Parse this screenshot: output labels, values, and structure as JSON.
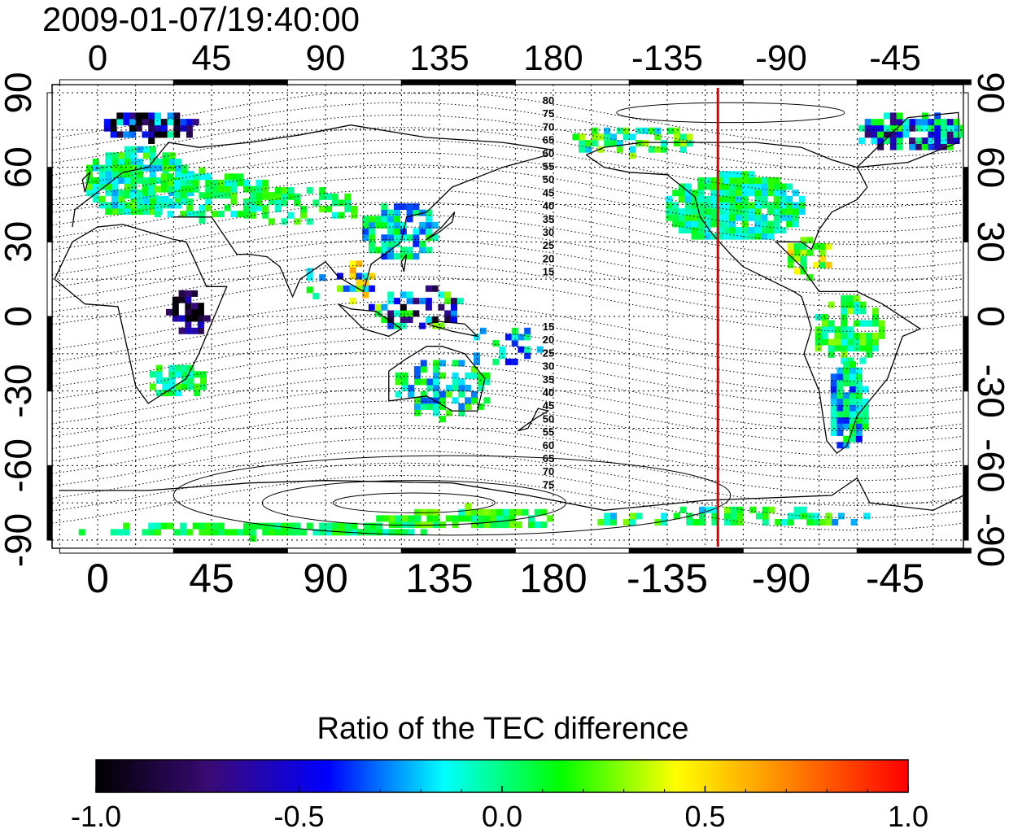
{
  "header": {
    "timestamp": "2009-01-07/19:40:00"
  },
  "map": {
    "lon_ticks": [
      "0",
      "45",
      "90",
      "135",
      "180",
      "-135",
      "-90",
      "-45"
    ],
    "lon_values": [
      0,
      45,
      90,
      135,
      180,
      225,
      270,
      315
    ],
    "lon_range": [
      -18,
      342
    ],
    "lat_ticks": [
      "90",
      "60",
      "30",
      "0",
      "-30",
      "-60",
      "-90"
    ],
    "lat_values": [
      90,
      60,
      30,
      0,
      -30,
      -60,
      -90
    ],
    "grid": true,
    "grid_lon_step": 15,
    "grid_lat_step": 15,
    "marker_line_lon": -115,
    "marker_line_color": "#e00000",
    "contour_labels_north": [
      "80",
      "75",
      "70",
      "65",
      "60",
      "55",
      "50",
      "45",
      "40",
      "35",
      "30",
      "25",
      "20",
      "15"
    ],
    "contour_labels_south": [
      "15",
      "20",
      "25",
      "30",
      "35",
      "40",
      "45",
      "50",
      "55",
      "60",
      "65",
      "70",
      "75"
    ]
  },
  "colorbar": {
    "title": "Ratio of the TEC difference",
    "ticks": [
      "-1.0",
      "-0.5",
      "0.0",
      "0.5",
      "1.0"
    ],
    "range": [
      -1.0,
      1.0
    ],
    "colors": [
      "#000000",
      "#3a0a78",
      "#0000ff",
      "#00ffff",
      "#00ff00",
      "#ffff00",
      "#ff8000",
      "#ff0000"
    ]
  }
}
